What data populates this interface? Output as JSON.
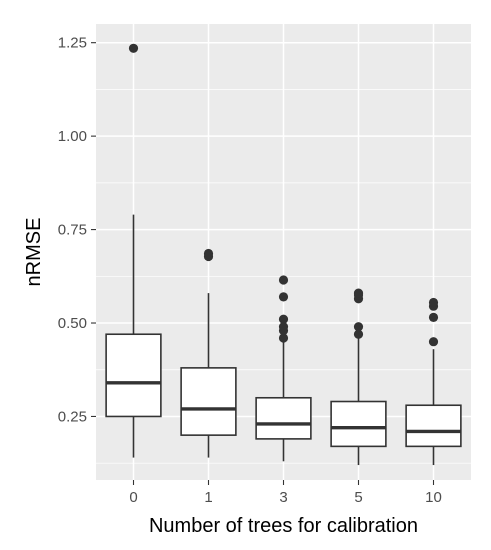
{
  "chart_data": {
    "type": "box",
    "xlabel": "Number of trees for calibration",
    "ylabel": "nRMSE",
    "categories": [
      "0",
      "1",
      "3",
      "5",
      "10"
    ],
    "ylim": [
      0.08,
      1.3
    ],
    "y_ticks": [
      0.25,
      0.5,
      0.75,
      1.0,
      1.25
    ],
    "y_tick_labels": [
      "0.25",
      "0.50",
      "0.75",
      "1.00",
      "1.25"
    ],
    "grid": true,
    "boxes": [
      {
        "category": "0",
        "whisker_low": 0.14,
        "q1": 0.25,
        "median": 0.34,
        "q3": 0.47,
        "whisker_high": 0.79,
        "outliers": [
          1.235
        ]
      },
      {
        "category": "1",
        "whisker_low": 0.14,
        "q1": 0.2,
        "median": 0.27,
        "q3": 0.38,
        "whisker_high": 0.58,
        "outliers": [
          0.678,
          0.686
        ]
      },
      {
        "category": "3",
        "whisker_low": 0.13,
        "q1": 0.19,
        "median": 0.23,
        "q3": 0.3,
        "whisker_high": 0.46,
        "outliers": [
          0.46,
          0.48,
          0.49,
          0.51,
          0.57,
          0.615
        ]
      },
      {
        "category": "5",
        "whisker_low": 0.12,
        "q1": 0.17,
        "median": 0.22,
        "q3": 0.29,
        "whisker_high": 0.46,
        "outliers": [
          0.47,
          0.49,
          0.565,
          0.575,
          0.58
        ]
      },
      {
        "category": "10",
        "whisker_low": 0.12,
        "q1": 0.17,
        "median": 0.21,
        "q3": 0.28,
        "whisker_high": 0.43,
        "outliers": [
          0.45,
          0.515,
          0.545,
          0.555
        ]
      }
    ],
    "colors": {
      "panel": "#ebebeb",
      "grid": "#ffffff",
      "box_line": "#333333",
      "box_fill": "#ffffff",
      "text": "#4d4d4d"
    }
  }
}
